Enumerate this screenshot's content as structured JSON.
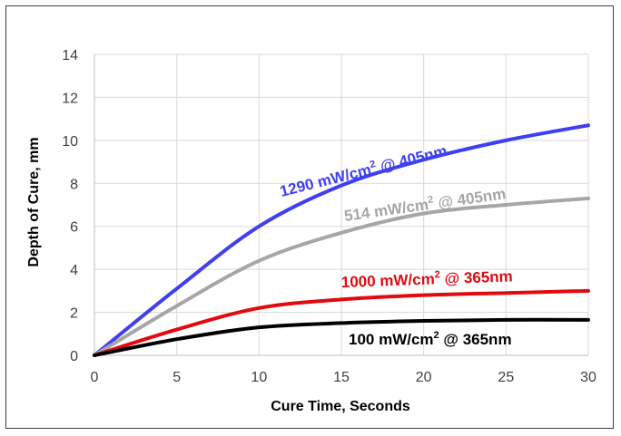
{
  "chart_data": {
    "type": "line",
    "xlabel": "Cure Time, Seconds",
    "ylabel": "Depth of Cure, mm",
    "xlim": [
      0,
      30
    ],
    "ylim": [
      0,
      14
    ],
    "xticks": [
      0,
      5,
      10,
      15,
      20,
      25,
      30
    ],
    "yticks": [
      0,
      2,
      4,
      6,
      8,
      10,
      12,
      14
    ],
    "grid": true,
    "legend": "none",
    "series": [
      {
        "name": "1290 mW/cm² @ 405nm",
        "label": {
          "pre": "1290 mW/cm",
          "sup": "2",
          "post": " @ 405nm"
        },
        "color": "#3f3ff2",
        "x": [
          0,
          5,
          10,
          15,
          20,
          25,
          30
        ],
        "y": [
          0,
          3.1,
          6.0,
          7.9,
          9.1,
          10.0,
          10.7
        ]
      },
      {
        "name": "514 mW/cm² @ 405nm",
        "label": {
          "pre": "514 mW/cm",
          "sup": "2",
          "post": " @ 405nm"
        },
        "color": "#a6a6a6",
        "x": [
          0,
          5,
          10,
          15,
          20,
          25,
          30
        ],
        "y": [
          0,
          2.3,
          4.4,
          5.7,
          6.6,
          7.0,
          7.3
        ]
      },
      {
        "name": "1000 mW/cm² @ 365nm",
        "label": {
          "pre": "1000 mW/cm",
          "sup": "2",
          "post": " @ 365nm"
        },
        "color": "#e00a10",
        "x": [
          0,
          5,
          10,
          15,
          20,
          25,
          30
        ],
        "y": [
          0,
          1.2,
          2.2,
          2.6,
          2.8,
          2.9,
          3.0
        ]
      },
      {
        "name": "100 mW/cm² @ 365nm",
        "label": {
          "pre": "100 mW/cm",
          "sup": "2",
          "post": " @ 365nm"
        },
        "color": "#000000",
        "x": [
          0,
          5,
          10,
          15,
          20,
          25,
          30
        ],
        "y": [
          0,
          0.75,
          1.3,
          1.5,
          1.6,
          1.65,
          1.65
        ]
      }
    ]
  }
}
